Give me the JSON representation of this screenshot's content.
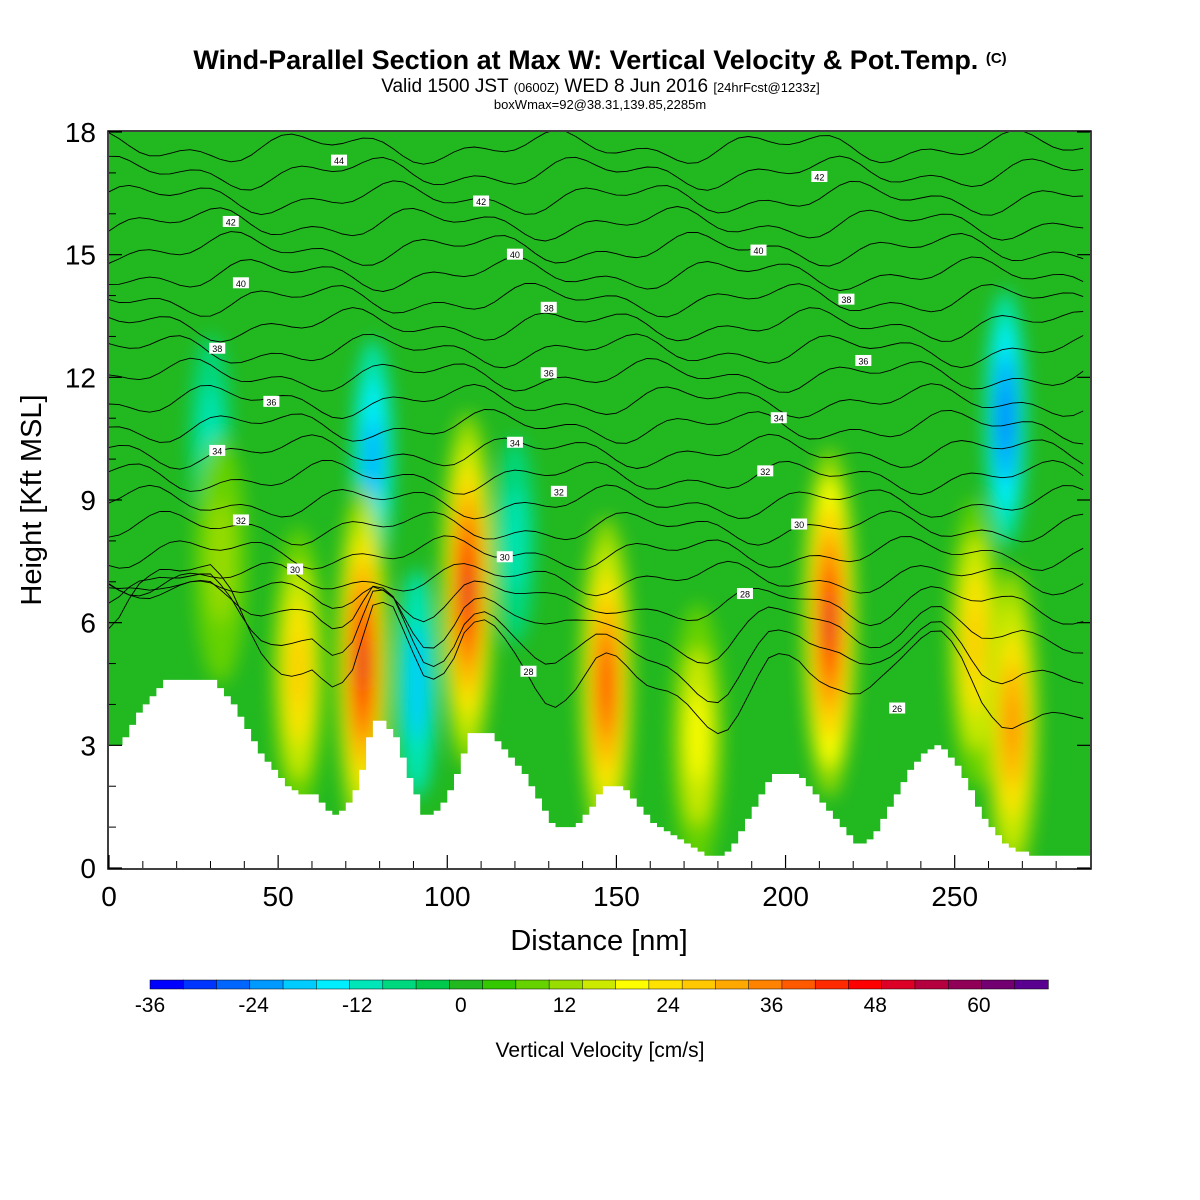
{
  "title": {
    "main": "Wind-Parallel Section at Max W: Vertical Velocity & Pot.Temp.",
    "copyright": "(C)",
    "valid_prefix": "Valid 1500 JST",
    "valid_utc": "(0600Z)",
    "valid_date": "WED 8 Jun 2016",
    "forecast": "[24hrFcst@1233z]",
    "boxwmax": "boxWmax=92@38.31,139.85,2285m"
  },
  "chart_data": {
    "type": "heatmap",
    "xlabel": "Distance [nm]",
    "ylabel": "Height [Kft MSL]",
    "xlim": [
      0,
      290
    ],
    "ylim": [
      0,
      18
    ],
    "x_ticks": [
      0,
      50,
      100,
      150,
      200,
      250
    ],
    "y_ticks": [
      0,
      3,
      6,
      9,
      12,
      15,
      18
    ],
    "colorbar": {
      "label": "Vertical Velocity [cm/s]",
      "range": [
        -36,
        68
      ],
      "tick_labels": [
        -36,
        -24,
        -12,
        0,
        12,
        24,
        36,
        48,
        60
      ],
      "colors": [
        "#0000ff",
        "#0034ff",
        "#0066ff",
        "#0099ff",
        "#00ccff",
        "#00eeff",
        "#00e6b8",
        "#00d880",
        "#00c84a",
        "#22b820",
        "#33c800",
        "#66d200",
        "#99dc00",
        "#ccea00",
        "#ffff00",
        "#ffe200",
        "#ffc800",
        "#ffa800",
        "#ff8200",
        "#ff5a00",
        "#ff2a00",
        "#ff0000",
        "#dd0026",
        "#b4003e",
        "#900056",
        "#720070",
        "#5a0090"
      ]
    },
    "updraft_cores": [
      {
        "x": 33,
        "z": 7.5,
        "w": 12
      },
      {
        "x": 56,
        "z": 4.8,
        "w": 28
      },
      {
        "x": 75,
        "z": 5.0,
        "w": 52
      },
      {
        "x": 106,
        "z": 6.8,
        "w": 52
      },
      {
        "x": 147,
        "z": 4.5,
        "w": 44
      },
      {
        "x": 174,
        "z": 3.2,
        "w": 20
      },
      {
        "x": 213,
        "z": 6.0,
        "w": 50
      },
      {
        "x": 256,
        "z": 5.5,
        "w": 28
      },
      {
        "x": 267,
        "z": 3.5,
        "w": 36
      }
    ],
    "downdraft_cores": [
      {
        "x": 78,
        "z": 10.0,
        "w": -22
      },
      {
        "x": 91,
        "z": 4.5,
        "w": -18
      },
      {
        "x": 265,
        "z": 11.0,
        "w": -28
      },
      {
        "x": 30,
        "z": 10.5,
        "w": -10
      },
      {
        "x": 120,
        "z": 8.0,
        "w": -10
      }
    ],
    "terrain": {
      "x": [
        0,
        2,
        4,
        6,
        8,
        10,
        12,
        14,
        16,
        18,
        20,
        30,
        32,
        34,
        36,
        38,
        40,
        42,
        44,
        46,
        48,
        50,
        52,
        54,
        56,
        58,
        60,
        62,
        64,
        66,
        68,
        70,
        72,
        74,
        76,
        78,
        80,
        82,
        84,
        86,
        88,
        90,
        92,
        94,
        96,
        98,
        100,
        102,
        104,
        106,
        112,
        114,
        116,
        118,
        120,
        122,
        124,
        126,
        128,
        130,
        132,
        134,
        136,
        138,
        140,
        142,
        144,
        146,
        148,
        150,
        152,
        154,
        156,
        158,
        160,
        162,
        164,
        166,
        168,
        170,
        172,
        174,
        176,
        178,
        180,
        182,
        184,
        186,
        188,
        190,
        192,
        194,
        196,
        198,
        200,
        202,
        204,
        206,
        208,
        210,
        212,
        214,
        216,
        218,
        220,
        222,
        224,
        226,
        228,
        230,
        232,
        234,
        236,
        238,
        240,
        242,
        244,
        246,
        248,
        250,
        252,
        254,
        256,
        258,
        260,
        262,
        264,
        266,
        268,
        270,
        272,
        274,
        276,
        278,
        280,
        282,
        284,
        286,
        288,
        290
      ],
      "z": [
        3.0,
        3.0,
        3.2,
        3.5,
        3.8,
        4.0,
        4.2,
        4.4,
        4.6,
        4.6,
        4.6,
        4.6,
        4.4,
        4.2,
        4.0,
        3.7,
        3.4,
        3.1,
        2.8,
        2.6,
        2.4,
        2.2,
        2.0,
        1.9,
        1.8,
        1.8,
        1.8,
        1.6,
        1.4,
        1.3,
        1.4,
        1.6,
        1.9,
        2.4,
        3.2,
        3.6,
        3.6,
        3.4,
        3.2,
        2.7,
        2.2,
        1.8,
        1.3,
        1.3,
        1.4,
        1.6,
        1.9,
        2.3,
        2.8,
        3.3,
        3.3,
        3.1,
        2.9,
        2.7,
        2.5,
        2.3,
        2.0,
        1.7,
        1.4,
        1.1,
        1.0,
        1.0,
        1.0,
        1.1,
        1.3,
        1.5,
        1.8,
        2.0,
        2.0,
        2.0,
        1.9,
        1.7,
        1.5,
        1.3,
        1.1,
        1.0,
        0.9,
        0.8,
        0.7,
        0.6,
        0.5,
        0.4,
        0.3,
        0.3,
        0.3,
        0.4,
        0.6,
        0.9,
        1.2,
        1.5,
        1.8,
        2.1,
        2.3,
        2.3,
        2.3,
        2.3,
        2.2,
        2.0,
        1.8,
        1.6,
        1.4,
        1.2,
        1.0,
        0.8,
        0.6,
        0.6,
        0.7,
        0.9,
        1.2,
        1.5,
        1.8,
        2.1,
        2.4,
        2.6,
        2.8,
        2.9,
        3.0,
        2.9,
        2.7,
        2.5,
        2.2,
        1.9,
        1.5,
        1.2,
        1.0,
        0.8,
        0.6,
        0.5,
        0.4,
        0.4,
        0.3,
        0.3,
        0.3,
        0.3,
        0.3,
        0.3,
        0.3,
        0.3,
        0.3,
        0.3
      ]
    },
    "theta_contours": [
      {
        "label": "28",
        "level": 28
      },
      {
        "label": "30",
        "level": 30
      },
      {
        "label": "32",
        "level": 32
      },
      {
        "label": "34",
        "level": 34
      },
      {
        "label": "36",
        "level": 36
      },
      {
        "label": "38",
        "level": 38
      },
      {
        "label": "40",
        "level": 40
      },
      {
        "label": "42",
        "level": 42
      },
      {
        "label": "44",
        "level": 44
      }
    ],
    "contour_labels": [
      {
        "text": "44",
        "x": 68,
        "z": 17.3
      },
      {
        "text": "42",
        "x": 36,
        "z": 15.8
      },
      {
        "text": "40",
        "x": 39,
        "z": 14.3
      },
      {
        "text": "38",
        "x": 32,
        "z": 12.7
      },
      {
        "text": "36",
        "x": 48,
        "z": 11.4
      },
      {
        "text": "34",
        "x": 32,
        "z": 10.2
      },
      {
        "text": "32",
        "x": 39,
        "z": 8.5
      },
      {
        "text": "30",
        "x": 55,
        "z": 7.3
      },
      {
        "text": "42",
        "x": 110,
        "z": 16.3
      },
      {
        "text": "40",
        "x": 120,
        "z": 15.0
      },
      {
        "text": "38",
        "x": 130,
        "z": 13.7
      },
      {
        "text": "36",
        "x": 130,
        "z": 12.1
      },
      {
        "text": "34",
        "x": 120,
        "z": 10.4
      },
      {
        "text": "32",
        "x": 133,
        "z": 9.2
      },
      {
        "text": "30",
        "x": 117,
        "z": 7.6
      },
      {
        "text": "28",
        "x": 124,
        "z": 4.8
      },
      {
        "text": "42",
        "x": 210,
        "z": 16.9
      },
      {
        "text": "40",
        "x": 192,
        "z": 15.1
      },
      {
        "text": "38",
        "x": 218,
        "z": 13.9
      },
      {
        "text": "36",
        "x": 223,
        "z": 12.4
      },
      {
        "text": "34",
        "x": 198,
        "z": 11.0
      },
      {
        "text": "32",
        "x": 194,
        "z": 9.7
      },
      {
        "text": "30",
        "x": 204,
        "z": 8.4
      },
      {
        "text": "28",
        "x": 188,
        "z": 6.7
      },
      {
        "text": "26",
        "x": 233,
        "z": 3.9
      }
    ]
  }
}
